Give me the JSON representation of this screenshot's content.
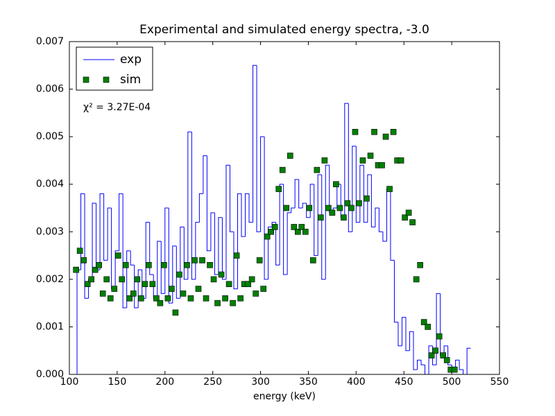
{
  "chart_data": {
    "type": "line",
    "title": "Experimental and simulated energy spectra, -3.0",
    "x_label": "energy (keV)",
    "annotation": "χ² = 3.27E-04",
    "legend": "upper left",
    "xlim": [
      100,
      550
    ],
    "ylim": [
      0,
      0.007
    ],
    "xticks": [
      100,
      150,
      200,
      250,
      300,
      350,
      400,
      450,
      500,
      550
    ],
    "yticks": [
      {
        "value": 0,
        "label": "0.000"
      },
      {
        "value": 0.001,
        "label": "0.001"
      },
      {
        "value": 0.002,
        "label": "0.002"
      },
      {
        "value": 0.003,
        "label": "0.003"
      },
      {
        "value": 0.004,
        "label": "0.004"
      },
      {
        "value": 0.005,
        "label": "0.005"
      },
      {
        "value": 0.006,
        "label": "0.006"
      },
      {
        "value": 0.007,
        "label": "0.007"
      }
    ],
    "series": [
      {
        "name": "exp",
        "color": "#0000ff",
        "style": "step",
        "bins": [
          108,
          112,
          116,
          120,
          124,
          128,
          132,
          136,
          140,
          144,
          148,
          152,
          156,
          160,
          164,
          168,
          172,
          176,
          180,
          184,
          188,
          192,
          196,
          200,
          204,
          208,
          212,
          216,
          220,
          224,
          228,
          232,
          236,
          240,
          244,
          248,
          252,
          256,
          260,
          264,
          268,
          272,
          276,
          280,
          284,
          288,
          292,
          296,
          300,
          304,
          308,
          312,
          316,
          320,
          324,
          328,
          332,
          336,
          340,
          344,
          348,
          352,
          356,
          360,
          364,
          368,
          372,
          376,
          380,
          384,
          388,
          392,
          396,
          400,
          404,
          408,
          412,
          416,
          420,
          424,
          428,
          432,
          436,
          440,
          444,
          448,
          452,
          456,
          460,
          464,
          468,
          472,
          476,
          480,
          484,
          488,
          492,
          496,
          500,
          504,
          508,
          512,
          516,
          520
        ],
        "values": [
          0.0022,
          0.0038,
          0.0016,
          0.002,
          0.0036,
          0.0022,
          0.0038,
          0.0024,
          0.0035,
          0.0018,
          0.0026,
          0.0038,
          0.0014,
          0.0026,
          0.0023,
          0.0014,
          0.0022,
          0.0016,
          0.0032,
          0.0021,
          0.0016,
          0.0028,
          0.0017,
          0.0035,
          0.0015,
          0.0027,
          0.0016,
          0.0031,
          0.002,
          0.0051,
          0.002,
          0.0032,
          0.0038,
          0.0046,
          0.0026,
          0.0034,
          0.0021,
          0.0033,
          0.002,
          0.0044,
          0.003,
          0.0018,
          0.0038,
          0.0029,
          0.0038,
          0.0032,
          0.0065,
          0.003,
          0.005,
          0.002,
          0.0031,
          0.0032,
          0.0023,
          0.004,
          0.0021,
          0.0034,
          0.0035,
          0.0041,
          0.0035,
          0.0036,
          0.0033,
          0.004,
          0.0025,
          0.0042,
          0.002,
          0.0044,
          0.0034,
          0.0035,
          0.004,
          0.0033,
          0.0057,
          0.003,
          0.0048,
          0.0032,
          0.0044,
          0.0032,
          0.0042,
          0.0031,
          0.0035,
          0.003,
          0.0028,
          0.0039,
          0.0024,
          0.0011,
          0.0006,
          0.0012,
          0.0005,
          0.0009,
          0.0001,
          0.0003,
          0.0002,
          0,
          0.0006,
          0.0002,
          0.0017,
          0.0004,
          0.0006,
          0.0002,
          0.0001,
          0.0003,
          0.0001,
          0,
          0.00055
        ]
      },
      {
        "name": "sim",
        "color": "#008000",
        "style": "square",
        "x": [
          107,
          111,
          115,
          119,
          123,
          127,
          131,
          135,
          139,
          143,
          147,
          151,
          155,
          159,
          163,
          167,
          171,
          175,
          179,
          183,
          187,
          191,
          195,
          199,
          203,
          207,
          211,
          215,
          219,
          223,
          227,
          231,
          235,
          239,
          243,
          247,
          251,
          255,
          259,
          263,
          267,
          271,
          275,
          279,
          283,
          287,
          291,
          295,
          299,
          303,
          307,
          311,
          315,
          319,
          323,
          327,
          331,
          335,
          339,
          343,
          347,
          351,
          355,
          359,
          363,
          367,
          371,
          375,
          379,
          383,
          387,
          391,
          395,
          399,
          403,
          407,
          411,
          415,
          419,
          423,
          427,
          431,
          435,
          439,
          443,
          447,
          451,
          455,
          459,
          463,
          467,
          471,
          475,
          479,
          483,
          487,
          491,
          495,
          499,
          503
        ],
        "values": [
          0.0022,
          0.0026,
          0.0024,
          0.0019,
          0.002,
          0.0022,
          0.0023,
          0.0017,
          0.002,
          0.0016,
          0.0018,
          0.0025,
          0.002,
          0.0023,
          0.0016,
          0.0017,
          0.002,
          0.0016,
          0.0019,
          0.0023,
          0.0019,
          0.0016,
          0.0015,
          0.0023,
          0.0016,
          0.0018,
          0.0013,
          0.0021,
          0.0017,
          0.0023,
          0.0016,
          0.0024,
          0.0018,
          0.0024,
          0.0016,
          0.0023,
          0.002,
          0.0015,
          0.0021,
          0.0016,
          0.0019,
          0.0015,
          0.0025,
          0.0016,
          0.0019,
          0.0019,
          0.002,
          0.0017,
          0.0024,
          0.0018,
          0.0029,
          0.003,
          0.0031,
          0.0039,
          0.0043,
          0.0035,
          0.0046,
          0.0031,
          0.003,
          0.0031,
          0.003,
          0.0035,
          0.0024,
          0.0043,
          0.0033,
          0.0045,
          0.0035,
          0.0034,
          0.004,
          0.0035,
          0.0033,
          0.0036,
          0.0035,
          0.0051,
          0.0036,
          0.0045,
          0.0037,
          0.0046,
          0.0051,
          0.0044,
          0.0044,
          0.005,
          0.0039,
          0.0051,
          0.0045,
          0.0045,
          0.0033,
          0.0034,
          0.0032,
          0.002,
          0.0023,
          0.0011,
          0.001,
          0.0004,
          0.0005,
          0.0008,
          0.0004,
          0.0003,
          0.0001,
          0.0001
        ]
      }
    ]
  }
}
